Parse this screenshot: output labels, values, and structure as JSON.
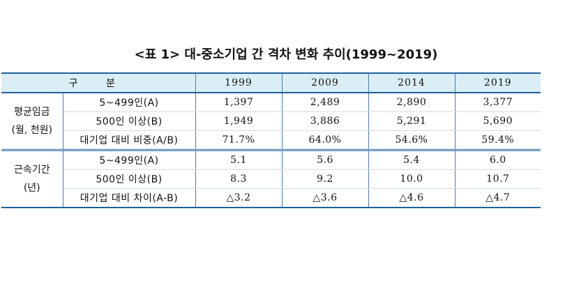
{
  "title": "<표 1> 대-중소기업 간 격차 변화 추이(1999~2019)",
  "header": {
    "label": "구 분",
    "years": [
      "1999",
      "2009",
      "2014",
      "2019"
    ]
  },
  "groups": [
    {
      "name_line1": "평균임금",
      "name_line2": "(월, 천원)",
      "rows": [
        {
          "label": "5~499인(A)",
          "values": [
            "1,397",
            "2,489",
            "2,890",
            "3,377"
          ]
        },
        {
          "label": "500인 이상(B)",
          "values": [
            "1,949",
            "3,886",
            "5,291",
            "5,690"
          ]
        },
        {
          "label": "대기업 대비 비중(A/B)",
          "values": [
            "71.7%",
            "64.0%",
            "54.6%",
            "59.4%"
          ]
        }
      ]
    },
    {
      "name_line1": "근속기간",
      "name_line2": "(년)",
      "rows": [
        {
          "label": "5~499인(A)",
          "values": [
            "5.1",
            "5.6",
            "5.4",
            "6.0"
          ]
        },
        {
          "label": "500인 이상(B)",
          "values": [
            "8.3",
            "9.2",
            "10.0",
            "10.7"
          ]
        },
        {
          "label": "대기업 대비 차이(A-B)",
          "values": [
            "△3.2",
            "△3.6",
            "△4.6",
            "△4.7"
          ]
        }
      ]
    }
  ],
  "colors": {
    "header_bg": "#dbeef6",
    "rule": "#1f5f9c",
    "divider": "#4a7da8"
  }
}
